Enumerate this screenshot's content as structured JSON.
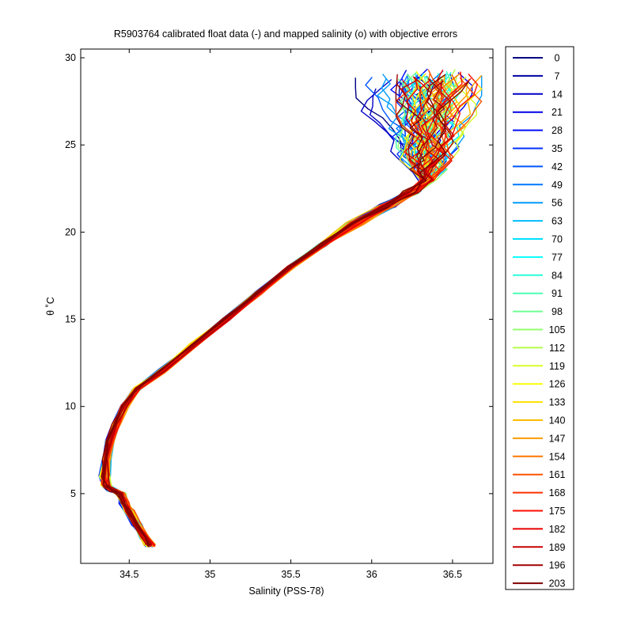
{
  "chart_data": {
    "type": "line",
    "title": "R5903764 calibrated float data (-) and mapped salinity (o) with objective errors",
    "xlabel": "Salinity (PSS-78)",
    "ylabel": "θ ˚C",
    "xlim": [
      34.2,
      36.75
    ],
    "ylim": [
      1,
      30.5
    ],
    "xticks": [
      34.5,
      35,
      35.5,
      36,
      36.5
    ],
    "xtick_labels": [
      "34.5",
      "35",
      "35.5",
      "36",
      "36.5"
    ],
    "yticks": [
      5,
      10,
      15,
      20,
      25,
      30
    ],
    "ytick_labels": [
      "5",
      "10",
      "15",
      "20",
      "25",
      "30"
    ],
    "grid": false,
    "legend_position": "outside-right",
    "colormap": "jet",
    "series_names": [
      "0",
      "7",
      "14",
      "21",
      "28",
      "35",
      "42",
      "49",
      "56",
      "63",
      "70",
      "77",
      "84",
      "91",
      "98",
      "105",
      "112",
      "119",
      "126",
      "133",
      "140",
      "147",
      "154",
      "161",
      "168",
      "175",
      "182",
      "189",
      "196",
      "203"
    ],
    "profile_shape": {
      "salinity": [
        34.63,
        34.6,
        34.55,
        34.5,
        34.47,
        34.45,
        34.4,
        34.36,
        34.35,
        34.36,
        34.38,
        34.42,
        34.47,
        34.55,
        34.7,
        34.9,
        35.1,
        35.3,
        35.5,
        35.7,
        35.9,
        36.1,
        36.25,
        36.35
      ],
      "theta": [
        2.0,
        2.5,
        3.2,
        4.0,
        4.5,
        5.0,
        5.2,
        5.5,
        6.0,
        7.0,
        8.0,
        9.0,
        10.0,
        11.0,
        12.0,
        13.5,
        15.0,
        16.5,
        18.0,
        19.3,
        20.5,
        21.5,
        22.3,
        23.0
      ]
    }
  }
}
